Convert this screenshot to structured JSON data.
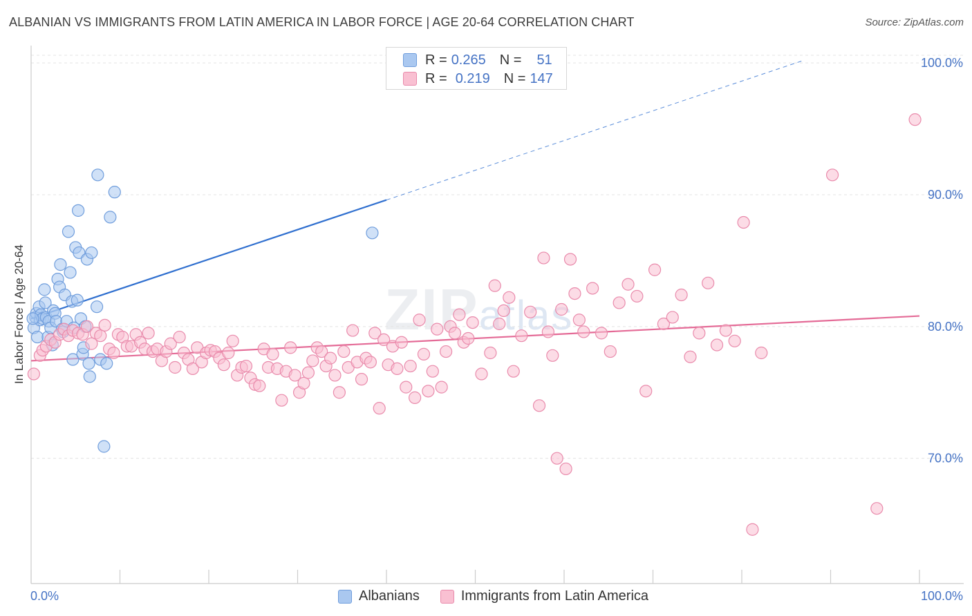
{
  "title": "ALBANIAN VS IMMIGRANTS FROM LATIN AMERICA IN LABOR FORCE | AGE 20-64 CORRELATION CHART",
  "source": "Source: ZipAtlas.com",
  "watermark": {
    "main": "ZIP",
    "sub": "atlas"
  },
  "legend": {
    "rows": [
      {
        "r_label": "R =",
        "r_value": "0.265",
        "n_label": "N =",
        "n_value": "51",
        "color": "#aac8f0",
        "border": "#6f9ddc"
      },
      {
        "r_label": "R =",
        "r_value": "0.219",
        "n_label": "N =",
        "n_value": "147",
        "color": "#f9c0d2",
        "border": "#e98aab"
      }
    ]
  },
  "bottom_legend": [
    {
      "label": "Albanians",
      "color": "#aac8f0",
      "border": "#6f9ddc"
    },
    {
      "label": "Immigrants from Latin America",
      "color": "#f9c0d2",
      "border": "#e98aab"
    }
  ],
  "chart_data": {
    "type": "scatter",
    "title": "ALBANIAN VS IMMIGRANTS FROM LATIN AMERICA IN LABOR FORCE | AGE 20-64 CORRELATION CHART",
    "xlabel": "",
    "ylabel": "In Labor Force | Age 20-64",
    "xlim": [
      0,
      100
    ],
    "ylim": [
      60.5,
      101
    ],
    "x_tick_labels": [
      "0.0%",
      "100.0%"
    ],
    "y_ticks": [
      70,
      80,
      90,
      100
    ],
    "y_tick_labels": [
      "70.0%",
      "80.0%",
      "90.0%",
      "100.0%"
    ],
    "grid": true,
    "legend_position": "top-center",
    "series": [
      {
        "name": "Albanians",
        "color": "#6f9ddc",
        "fill": "#aac8f0",
        "R": 0.265,
        "N": 51,
        "trend": {
          "x0": 0,
          "y0": 80.6,
          "x1": 40,
          "y1": 89.6,
          "dash_to_x": 87,
          "dash_to_y": 100.2,
          "color": "#2f6fcf"
        },
        "points": [
          [
            0.3,
            79.9
          ],
          [
            0.5,
            80.7
          ],
          [
            0.6,
            81.0
          ],
          [
            0.7,
            79.2
          ],
          [
            0.9,
            81.5
          ],
          [
            1.0,
            80.5
          ],
          [
            1.1,
            80.9
          ],
          [
            1.3,
            80.6
          ],
          [
            1.5,
            82.8
          ],
          [
            1.6,
            81.8
          ],
          [
            1.7,
            80.7
          ],
          [
            1.9,
            79.2
          ],
          [
            2.0,
            80.4
          ],
          [
            2.2,
            79.9
          ],
          [
            2.4,
            78.6
          ],
          [
            2.5,
            81.2
          ],
          [
            2.7,
            81.0
          ],
          [
            2.8,
            80.4
          ],
          [
            3.0,
            83.6
          ],
          [
            3.2,
            83.0
          ],
          [
            3.3,
            84.7
          ],
          [
            3.5,
            79.8
          ],
          [
            3.6,
            79.6
          ],
          [
            3.8,
            82.4
          ],
          [
            4.0,
            80.4
          ],
          [
            4.2,
            87.2
          ],
          [
            4.4,
            84.1
          ],
          [
            4.6,
            81.9
          ],
          [
            4.7,
            77.5
          ],
          [
            4.8,
            79.9
          ],
          [
            5.0,
            86.0
          ],
          [
            5.2,
            82.0
          ],
          [
            5.3,
            88.8
          ],
          [
            5.4,
            85.6
          ],
          [
            5.6,
            80.6
          ],
          [
            5.8,
            77.9
          ],
          [
            5.9,
            78.4
          ],
          [
            6.1,
            80.0
          ],
          [
            6.3,
            85.1
          ],
          [
            6.5,
            77.2
          ],
          [
            6.6,
            76.2
          ],
          [
            6.8,
            85.6
          ],
          [
            7.4,
            81.5
          ],
          [
            7.5,
            91.5
          ],
          [
            7.8,
            77.5
          ],
          [
            8.2,
            70.9
          ],
          [
            8.5,
            77.2
          ],
          [
            8.9,
            88.3
          ],
          [
            9.4,
            90.2
          ],
          [
            38.4,
            87.1
          ],
          [
            0.2,
            80.6
          ]
        ]
      },
      {
        "name": "Immigrants from Latin America",
        "color": "#e98aab",
        "fill": "#f9c0d2",
        "R": 0.219,
        "N": 147,
        "trend": {
          "x0": 0,
          "y0": 77.4,
          "x1": 100,
          "y1": 80.8,
          "color": "#e46a96"
        },
        "points": [
          [
            0.3,
            76.4
          ],
          [
            1.0,
            77.8
          ],
          [
            1.3,
            78.2
          ],
          [
            1.7,
            78.5
          ],
          [
            2.2,
            79.0
          ],
          [
            2.7,
            78.8
          ],
          [
            3.2,
            79.4
          ],
          [
            3.7,
            79.8
          ],
          [
            4.2,
            79.3
          ],
          [
            4.7,
            79.7
          ],
          [
            5.3,
            79.5
          ],
          [
            5.8,
            79.4
          ],
          [
            6.3,
            80.0
          ],
          [
            6.8,
            78.7
          ],
          [
            7.3,
            79.5
          ],
          [
            7.8,
            79.3
          ],
          [
            8.3,
            80.1
          ],
          [
            8.8,
            78.3
          ],
          [
            9.3,
            78.0
          ],
          [
            9.8,
            79.4
          ],
          [
            10.3,
            79.2
          ],
          [
            10.8,
            78.5
          ],
          [
            11.3,
            78.5
          ],
          [
            11.8,
            79.4
          ],
          [
            12.3,
            78.8
          ],
          [
            12.8,
            78.3
          ],
          [
            13.2,
            79.5
          ],
          [
            13.7,
            78.1
          ],
          [
            14.2,
            78.3
          ],
          [
            14.7,
            77.4
          ],
          [
            15.2,
            78.1
          ],
          [
            15.7,
            78.7
          ],
          [
            16.2,
            76.9
          ],
          [
            16.7,
            79.2
          ],
          [
            17.2,
            78.0
          ],
          [
            17.7,
            77.5
          ],
          [
            18.2,
            76.8
          ],
          [
            18.7,
            78.4
          ],
          [
            19.2,
            77.3
          ],
          [
            19.7,
            78.0
          ],
          [
            20.2,
            78.2
          ],
          [
            20.7,
            78.1
          ],
          [
            21.2,
            77.6
          ],
          [
            21.7,
            77.1
          ],
          [
            22.2,
            78.0
          ],
          [
            22.7,
            78.9
          ],
          [
            23.2,
            76.3
          ],
          [
            23.7,
            76.9
          ],
          [
            24.2,
            77.0
          ],
          [
            24.7,
            76.1
          ],
          [
            25.2,
            75.6
          ],
          [
            25.7,
            75.5
          ],
          [
            26.2,
            78.3
          ],
          [
            26.7,
            76.9
          ],
          [
            27.2,
            77.9
          ],
          [
            27.7,
            76.8
          ],
          [
            28.2,
            74.4
          ],
          [
            28.7,
            76.6
          ],
          [
            29.2,
            78.4
          ],
          [
            29.7,
            76.3
          ],
          [
            30.2,
            75.0
          ],
          [
            30.7,
            75.7
          ],
          [
            31.2,
            76.5
          ],
          [
            31.7,
            77.4
          ],
          [
            32.2,
            78.4
          ],
          [
            32.7,
            78.1
          ],
          [
            33.2,
            77.0
          ],
          [
            33.7,
            77.6
          ],
          [
            34.2,
            76.3
          ],
          [
            34.7,
            75.0
          ],
          [
            35.2,
            78.1
          ],
          [
            35.7,
            76.9
          ],
          [
            36.2,
            79.7
          ],
          [
            36.7,
            77.3
          ],
          [
            37.2,
            76.0
          ],
          [
            37.7,
            77.6
          ],
          [
            38.2,
            77.3
          ],
          [
            38.7,
            79.5
          ],
          [
            39.2,
            73.8
          ],
          [
            39.7,
            79.0
          ],
          [
            40.2,
            77.1
          ],
          [
            40.7,
            78.5
          ],
          [
            41.2,
            76.8
          ],
          [
            41.7,
            78.8
          ],
          [
            42.2,
            75.4
          ],
          [
            42.7,
            77.0
          ],
          [
            43.2,
            74.6
          ],
          [
            43.7,
            80.5
          ],
          [
            44.2,
            77.9
          ],
          [
            44.7,
            75.1
          ],
          [
            45.2,
            76.6
          ],
          [
            45.7,
            79.8
          ],
          [
            46.2,
            75.4
          ],
          [
            46.7,
            78.1
          ],
          [
            47.2,
            80.0
          ],
          [
            47.7,
            79.5
          ],
          [
            48.2,
            80.9
          ],
          [
            48.7,
            78.8
          ],
          [
            49.2,
            79.1
          ],
          [
            49.7,
            80.3
          ],
          [
            50.7,
            76.4
          ],
          [
            51.7,
            78.0
          ],
          [
            52.2,
            83.1
          ],
          [
            52.7,
            80.2
          ],
          [
            53.2,
            81.2
          ],
          [
            53.8,
            82.2
          ],
          [
            54.3,
            76.6
          ],
          [
            55.2,
            79.3
          ],
          [
            56.2,
            81.1
          ],
          [
            57.2,
            74.0
          ],
          [
            57.7,
            85.2
          ],
          [
            58.2,
            79.6
          ],
          [
            58.7,
            77.8
          ],
          [
            59.2,
            70.0
          ],
          [
            59.7,
            81.3
          ],
          [
            60.2,
            69.2
          ],
          [
            60.7,
            85.1
          ],
          [
            61.2,
            82.5
          ],
          [
            61.7,
            80.5
          ],
          [
            62.2,
            79.6
          ],
          [
            63.2,
            82.9
          ],
          [
            64.2,
            79.5
          ],
          [
            65.2,
            78.1
          ],
          [
            66.2,
            81.8
          ],
          [
            67.2,
            83.2
          ],
          [
            68.2,
            82.3
          ],
          [
            69.2,
            75.1
          ],
          [
            70.2,
            84.3
          ],
          [
            71.2,
            80.2
          ],
          [
            72.2,
            80.7
          ],
          [
            73.2,
            82.4
          ],
          [
            74.2,
            77.7
          ],
          [
            75.2,
            79.5
          ],
          [
            76.2,
            83.3
          ],
          [
            77.2,
            78.6
          ],
          [
            78.2,
            79.7
          ],
          [
            79.2,
            78.9
          ],
          [
            80.2,
            87.9
          ],
          [
            81.2,
            64.6
          ],
          [
            82.2,
            78.0
          ],
          [
            90.2,
            91.5
          ],
          [
            95.2,
            66.2
          ],
          [
            99.5,
            95.7
          ]
        ]
      }
    ]
  }
}
